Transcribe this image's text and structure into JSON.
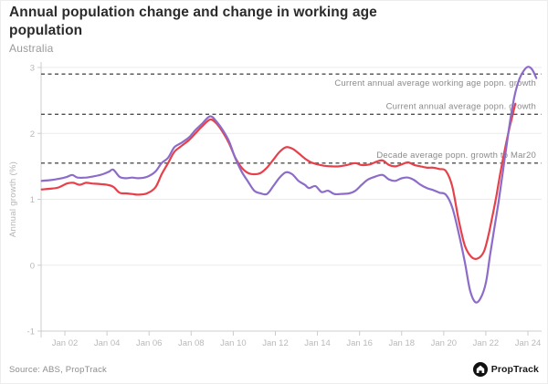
{
  "header": {
    "title": "Annual population change and change in working age population",
    "subtitle": "Australia"
  },
  "footer": {
    "source": "Source: ABS, PropTrack",
    "brand": "PropTrack"
  },
  "colors": {
    "title": "#2b2b2b",
    "subtitle": "#9a9a9a",
    "grid": "#ebebeb",
    "axis": "#cccccc",
    "tick_label": "#b9b9b9",
    "axis_title": "#b5b5b5",
    "reference_line": "#4f4f4f",
    "annotation": "#8a8a8a",
    "series_population": "#e6404a",
    "series_working_age": "#8d6cc9"
  },
  "chart_data": {
    "type": "line",
    "title": "Annual population change and change in working age population",
    "subtitle": "Australia",
    "xlabel": "",
    "ylabel": "Annual growth (%)",
    "grid": "horizontal",
    "legend_position": "none",
    "x_range": [
      2000.87,
      2024.65
    ],
    "y_range": [
      -1,
      3
    ],
    "y_ticks": [
      {
        "value": 3,
        "label": "3"
      },
      {
        "value": 2,
        "label": "2"
      },
      {
        "value": 1,
        "label": "1"
      },
      {
        "value": 0,
        "label": "0"
      },
      {
        "value": -1,
        "label": "-1"
      }
    ],
    "x_ticks": [
      {
        "value": 2002,
        "label": "Jan 02"
      },
      {
        "value": 2004,
        "label": "Jan 04"
      },
      {
        "value": 2006,
        "label": "Jan 06"
      },
      {
        "value": 2008,
        "label": "Jan 08"
      },
      {
        "value": 2010,
        "label": "Jan 10"
      },
      {
        "value": 2012,
        "label": "Jan 12"
      },
      {
        "value": 2014,
        "label": "Jan 14"
      },
      {
        "value": 2016,
        "label": "Jan 16"
      },
      {
        "value": 2018,
        "label": "Jan 18"
      },
      {
        "value": 2020,
        "label": "Jan 20"
      },
      {
        "value": 2022,
        "label": "Jan 22"
      },
      {
        "value": 2024,
        "label": "Jan 24"
      }
    ],
    "reference_lines": [
      {
        "value": 2.9,
        "label": "Current annual average working age popn. growth",
        "label_side": "below"
      },
      {
        "value": 2.29,
        "label": "Current annual average popn. growth",
        "label_side": "above"
      },
      {
        "value": 1.55,
        "label": "Decade average popn. growth to Mar20",
        "label_side": "above"
      }
    ],
    "series": [
      {
        "name": "popn. growth",
        "color_key": "series_population",
        "points": [
          [
            2000.9,
            1.15
          ],
          [
            2001.3,
            1.16
          ],
          [
            2001.7,
            1.18
          ],
          [
            2002.1,
            1.24
          ],
          [
            2002.4,
            1.25
          ],
          [
            2002.7,
            1.22
          ],
          [
            2003.0,
            1.25
          ],
          [
            2003.3,
            1.24
          ],
          [
            2003.7,
            1.23
          ],
          [
            2004.0,
            1.22
          ],
          [
            2004.3,
            1.19
          ],
          [
            2004.6,
            1.1
          ],
          [
            2004.9,
            1.09
          ],
          [
            2005.2,
            1.08
          ],
          [
            2005.5,
            1.07
          ],
          [
            2005.9,
            1.09
          ],
          [
            2006.3,
            1.18
          ],
          [
            2006.6,
            1.38
          ],
          [
            2006.9,
            1.55
          ],
          [
            2007.2,
            1.72
          ],
          [
            2007.5,
            1.8
          ],
          [
            2007.9,
            1.9
          ],
          [
            2008.2,
            2.0
          ],
          [
            2008.5,
            2.1
          ],
          [
            2008.9,
            2.21
          ],
          [
            2009.2,
            2.15
          ],
          [
            2009.5,
            2.02
          ],
          [
            2009.8,
            1.85
          ],
          [
            2010.1,
            1.63
          ],
          [
            2010.4,
            1.48
          ],
          [
            2010.7,
            1.4
          ],
          [
            2011.0,
            1.38
          ],
          [
            2011.3,
            1.4
          ],
          [
            2011.6,
            1.48
          ],
          [
            2011.9,
            1.6
          ],
          [
            2012.2,
            1.72
          ],
          [
            2012.5,
            1.79
          ],
          [
            2012.8,
            1.77
          ],
          [
            2013.1,
            1.7
          ],
          [
            2013.4,
            1.62
          ],
          [
            2013.7,
            1.56
          ],
          [
            2014.0,
            1.53
          ],
          [
            2014.3,
            1.51
          ],
          [
            2014.7,
            1.5
          ],
          [
            2015.0,
            1.5
          ],
          [
            2015.4,
            1.52
          ],
          [
            2015.8,
            1.55
          ],
          [
            2016.1,
            1.52
          ],
          [
            2016.5,
            1.53
          ],
          [
            2016.8,
            1.57
          ],
          [
            2017.1,
            1.59
          ],
          [
            2017.4,
            1.52
          ],
          [
            2017.7,
            1.5
          ],
          [
            2018.0,
            1.53
          ],
          [
            2018.3,
            1.56
          ],
          [
            2018.6,
            1.52
          ],
          [
            2018.9,
            1.5
          ],
          [
            2019.2,
            1.48
          ],
          [
            2019.5,
            1.48
          ],
          [
            2019.8,
            1.46
          ],
          [
            2020.1,
            1.43
          ],
          [
            2020.4,
            1.2
          ],
          [
            2020.7,
            0.7
          ],
          [
            2021.0,
            0.3
          ],
          [
            2021.3,
            0.13
          ],
          [
            2021.6,
            0.1
          ],
          [
            2021.9,
            0.2
          ],
          [
            2022.1,
            0.42
          ],
          [
            2022.3,
            0.72
          ],
          [
            2022.5,
            1.05
          ],
          [
            2022.7,
            1.42
          ],
          [
            2022.9,
            1.75
          ],
          [
            2023.1,
            2.05
          ],
          [
            2023.25,
            2.25
          ],
          [
            2023.4,
            2.45
          ]
        ]
      },
      {
        "name": "working age popn. growth",
        "color_key": "series_working_age",
        "points": [
          [
            2000.9,
            1.28
          ],
          [
            2001.3,
            1.29
          ],
          [
            2001.7,
            1.31
          ],
          [
            2002.1,
            1.34
          ],
          [
            2002.35,
            1.37
          ],
          [
            2002.6,
            1.33
          ],
          [
            2003.0,
            1.33
          ],
          [
            2003.4,
            1.35
          ],
          [
            2003.8,
            1.38
          ],
          [
            2004.1,
            1.42
          ],
          [
            2004.3,
            1.45
          ],
          [
            2004.6,
            1.34
          ],
          [
            2004.9,
            1.32
          ],
          [
            2005.2,
            1.33
          ],
          [
            2005.5,
            1.32
          ],
          [
            2005.9,
            1.34
          ],
          [
            2006.3,
            1.42
          ],
          [
            2006.6,
            1.55
          ],
          [
            2006.9,
            1.63
          ],
          [
            2007.2,
            1.79
          ],
          [
            2007.5,
            1.85
          ],
          [
            2007.9,
            1.94
          ],
          [
            2008.2,
            2.05
          ],
          [
            2008.5,
            2.14
          ],
          [
            2008.9,
            2.26
          ],
          [
            2009.2,
            2.18
          ],
          [
            2009.5,
            2.05
          ],
          [
            2009.8,
            1.88
          ],
          [
            2010.1,
            1.62
          ],
          [
            2010.4,
            1.42
          ],
          [
            2010.7,
            1.27
          ],
          [
            2011.0,
            1.13
          ],
          [
            2011.3,
            1.09
          ],
          [
            2011.6,
            1.08
          ],
          [
            2011.9,
            1.2
          ],
          [
            2012.2,
            1.33
          ],
          [
            2012.5,
            1.41
          ],
          [
            2012.8,
            1.38
          ],
          [
            2013.1,
            1.28
          ],
          [
            2013.4,
            1.22
          ],
          [
            2013.6,
            1.17
          ],
          [
            2013.9,
            1.2
          ],
          [
            2014.2,
            1.11
          ],
          [
            2014.5,
            1.13
          ],
          [
            2014.8,
            1.08
          ],
          [
            2015.1,
            1.08
          ],
          [
            2015.5,
            1.09
          ],
          [
            2015.8,
            1.13
          ],
          [
            2016.1,
            1.22
          ],
          [
            2016.4,
            1.3
          ],
          [
            2016.8,
            1.35
          ],
          [
            2017.1,
            1.37
          ],
          [
            2017.4,
            1.3
          ],
          [
            2017.7,
            1.28
          ],
          [
            2018.0,
            1.32
          ],
          [
            2018.3,
            1.33
          ],
          [
            2018.6,
            1.29
          ],
          [
            2018.9,
            1.22
          ],
          [
            2019.2,
            1.17
          ],
          [
            2019.5,
            1.14
          ],
          [
            2019.8,
            1.1
          ],
          [
            2020.1,
            1.07
          ],
          [
            2020.4,
            0.88
          ],
          [
            2020.7,
            0.5
          ],
          [
            2021.0,
            0.05
          ],
          [
            2021.25,
            -0.38
          ],
          [
            2021.5,
            -0.56
          ],
          [
            2021.75,
            -0.5
          ],
          [
            2022.0,
            -0.27
          ],
          [
            2022.2,
            0.15
          ],
          [
            2022.4,
            0.55
          ],
          [
            2022.6,
            0.95
          ],
          [
            2022.8,
            1.4
          ],
          [
            2023.0,
            1.85
          ],
          [
            2023.2,
            2.28
          ],
          [
            2023.4,
            2.62
          ],
          [
            2023.6,
            2.83
          ],
          [
            2023.8,
            2.95
          ],
          [
            2024.0,
            3.01
          ],
          [
            2024.2,
            2.97
          ],
          [
            2024.4,
            2.84
          ]
        ]
      }
    ]
  }
}
